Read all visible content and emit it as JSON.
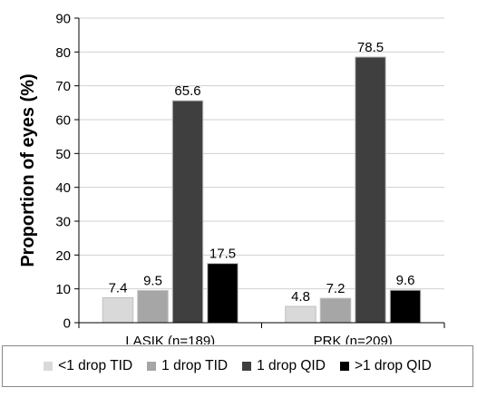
{
  "chart_data": {
    "type": "bar",
    "categories": [
      "LASIK (n=189)",
      "PRK (n=209)"
    ],
    "series": [
      {
        "name": "<1 drop TID",
        "values": [
          7.4,
          4.8
        ],
        "color": "#d9d9d9"
      },
      {
        "name": "1 drop TID",
        "values": [
          9.5,
          7.2
        ],
        "color": "#a6a6a6"
      },
      {
        "name": "1 drop QID",
        "values": [
          65.6,
          78.5
        ],
        "color": "#3f3f3f"
      },
      {
        "name": ">1 drop QID",
        "values": [
          17.5,
          9.6
        ],
        "color": "#000000"
      }
    ],
    "ylabel": "Proportion of eyes (%)",
    "ylim": [
      0,
      90
    ],
    "yticks": [
      0,
      10,
      20,
      30,
      40,
      50,
      60,
      70,
      80,
      90
    ],
    "grid": true,
    "legend_position": "bottom",
    "data_labels": true
  }
}
